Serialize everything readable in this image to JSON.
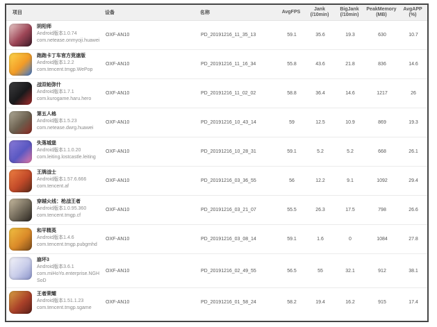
{
  "table": {
    "columns": [
      {
        "label": "项目",
        "sub": ""
      },
      {
        "label": "设备",
        "sub": ""
      },
      {
        "label": "名称",
        "sub": ""
      },
      {
        "label": "AvgFPS",
        "sub": ""
      },
      {
        "label": "Jank",
        "sub": "(/10min)"
      },
      {
        "label": "BigJank",
        "sub": "(/10min)"
      },
      {
        "label": "PeakMemory",
        "sub": "(MB)"
      },
      {
        "label": "AvgAPP",
        "sub": "(%)"
      }
    ],
    "rows": [
      {
        "title": "阴阳师",
        "version": "Android版本1.0.74",
        "package": "com.netease.onmyoji.huawei",
        "device": "OXF-AN10",
        "name": "PD_20191216_11_35_13",
        "avgfps": "59.1",
        "jank": "35.6",
        "bigjank": "19.3",
        "peakmemory": "630",
        "avgapp": "10.7",
        "icon_colors": [
          "#eccfcd",
          "#9e4657",
          "#3c1a28"
        ]
      },
      {
        "title": "跑跑卡丁车官方竞速版",
        "version": "Android版本1.2.2",
        "package": "com.tencent.tmgp.WePop",
        "device": "OXF-AN10",
        "name": "PD_20191216_11_16_34",
        "avgfps": "55.8",
        "jank": "43.6",
        "bigjank": "21.8",
        "peakmemory": "836",
        "avgapp": "14.6",
        "icon_colors": [
          "#ffd84d",
          "#f29b26",
          "#3b79d2"
        ]
      },
      {
        "title": "战双帕弥什",
        "version": "Android版本1.7.1",
        "package": "com.kurogame.haru.hero",
        "device": "OXF-AN10",
        "name": "PD_20191216_11_02_02",
        "avgfps": "58.8",
        "jank": "36.4",
        "bigjank": "14.6",
        "peakmemory": "1217",
        "avgapp": "26",
        "icon_colors": [
          "#3e3e40",
          "#19191b",
          "#a82d2d"
        ]
      },
      {
        "title": "第五人格",
        "version": "Android版本1.5.23",
        "package": "com.netease.dwrg.huawei",
        "device": "OXF-AN10",
        "name": "PD_20191216_10_43_14",
        "avgfps": "59",
        "jank": "12.5",
        "bigjank": "10.9",
        "peakmemory": "869",
        "avgapp": "19.3",
        "icon_colors": [
          "#b2ad9a",
          "#6b5f4e",
          "#8c2a22"
        ]
      },
      {
        "title": "失落城堡",
        "version": "Android版本1.1.0.20",
        "package": "com.leiting.lostcastle.leiting",
        "device": "OXF-AN10",
        "name": "PD_20191216_10_28_31",
        "avgfps": "59.1",
        "jank": "5.2",
        "bigjank": "5.2",
        "peakmemory": "668",
        "avgapp": "26.1",
        "icon_colors": [
          "#8b7bd9",
          "#5a58c2",
          "#e879a9"
        ]
      },
      {
        "title": "王牌战士",
        "version": "Android版本1.57.6.666",
        "package": "com.tencent.af",
        "device": "OXF-AN10",
        "name": "PD_20191216_03_36_55",
        "avgfps": "56",
        "jank": "12.2",
        "bigjank": "9.1",
        "peakmemory": "1092",
        "avgapp": "29.4",
        "icon_colors": [
          "#f08142",
          "#c24a29",
          "#5c2a19"
        ]
      },
      {
        "title": "穿越火线：枪战王者",
        "version": "Android版本1.0.95.360",
        "package": "com.tencent.tmgp.cf",
        "device": "OXF-AN10",
        "name": "PD_20191216_03_21_07",
        "avgfps": "55.5",
        "jank": "26.3",
        "bigjank": "17.5",
        "peakmemory": "798",
        "avgapp": "26.6",
        "icon_colors": [
          "#c9bca1",
          "#716959",
          "#2a2520"
        ]
      },
      {
        "title": "和平精英",
        "version": "Android版本1.4.6",
        "package": "com.tencent.tmgp.pubgmhd",
        "device": "OXF-AN10",
        "name": "PD_20191216_03_08_14",
        "avgfps": "59.1",
        "jank": "1.6",
        "bigjank": "0",
        "peakmemory": "1084",
        "avgapp": "27.8",
        "icon_colors": [
          "#f2c242",
          "#da8a29",
          "#7a491a"
        ]
      },
      {
        "title": "崩坏3",
        "version": "Android版本3.6.1",
        "package": "com.miHoYo.enterprise.NGHSoD",
        "device": "OXF-AN10",
        "name": "PD_20191216_02_49_55",
        "avgfps": "56.5",
        "jank": "55",
        "bigjank": "32.1",
        "peakmemory": "912",
        "avgapp": "38.1",
        "icon_colors": [
          "#f5f5f9",
          "#c9cdea",
          "#8992c9"
        ]
      },
      {
        "title": "王者荣耀",
        "version": "Android版本1.51.1.23",
        "package": "com.tencent.tmgp.sgame",
        "device": "OXF-AN10",
        "name": "PD_20191216_01_58_24",
        "avgfps": "58.2",
        "jank": "19.4",
        "bigjank": "16.2",
        "peakmemory": "915",
        "avgapp": "17.4",
        "icon_colors": [
          "#d9a242",
          "#aa4129",
          "#5c2019"
        ]
      }
    ]
  }
}
